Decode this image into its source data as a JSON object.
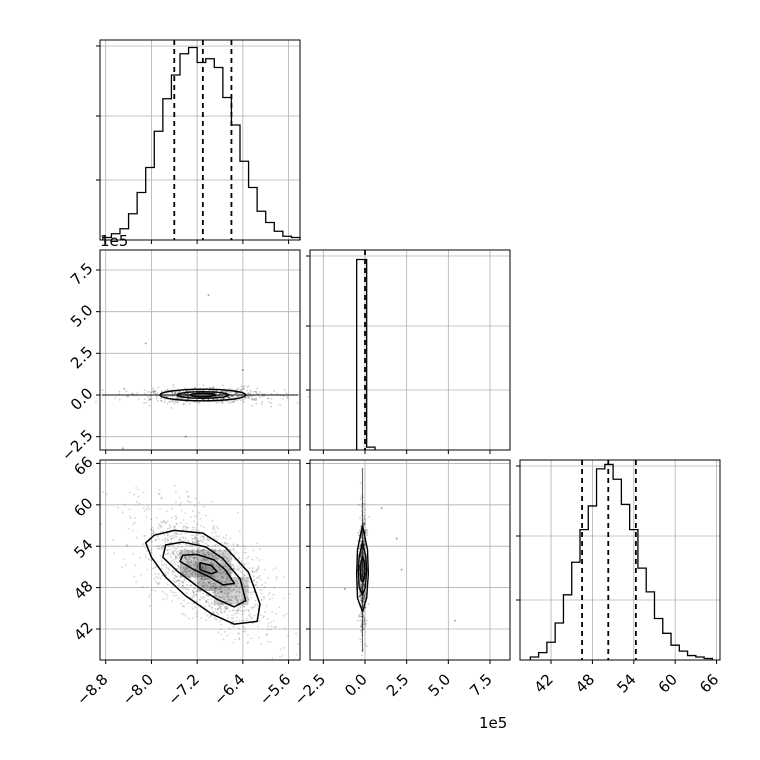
{
  "chart_data": {
    "type": "corner",
    "panels": {
      "hist_p1": {
        "type": "bar",
        "xlim": [
          -8.9,
          -5.4
        ],
        "bin_edges": [
          -8.85,
          -8.7,
          -8.55,
          -8.4,
          -8.25,
          -8.1,
          -7.95,
          -7.8,
          -7.65,
          -7.5,
          -7.35,
          -7.2,
          -7.05,
          -6.9,
          -6.75,
          -6.6,
          -6.45,
          -6.3,
          -6.15,
          -6.0,
          -5.85,
          -5.7,
          -5.55,
          -5.4
        ],
        "counts": [
          2,
          5,
          9,
          21,
          38,
          58,
          87,
          113,
          132,
          149,
          154,
          142,
          145,
          138,
          114,
          92,
          63,
          42,
          23,
          14,
          7,
          3,
          2
        ],
        "quantile_lines": [
          -7.6,
          -7.1,
          -6.6
        ],
        "yaxis_max": 160
      },
      "hist_p2": {
        "type": "bar",
        "xlim": [
          -3.3,
          8.7
        ],
        "bin_edges": [
          -0.5,
          0.1,
          0.6
        ],
        "counts": [
          100,
          1.5
        ],
        "quantile_lines": [
          0.0
        ],
        "yaxis_max": 105
      },
      "hist_p3": {
        "type": "bar",
        "xlim": [
          37.5,
          66.5
        ],
        "bin_edges": [
          39,
          40.2,
          41.4,
          42.6,
          43.8,
          45,
          46.2,
          47.4,
          48.6,
          49.8,
          51,
          52.2,
          53.4,
          54.6,
          55.8,
          57,
          58.2,
          59.4,
          60.6,
          61.8,
          63,
          64.2,
          65.4
        ],
        "counts": [
          2,
          5,
          12,
          25,
          44,
          66,
          88,
          104,
          129,
          132,
          122,
          105,
          88,
          62,
          46,
          28,
          18,
          10,
          6,
          3,
          2,
          1
        ],
        "quantile_lines": [
          46.5,
          50.3,
          54.3
        ],
        "yaxis_max": 135
      },
      "scatter_p1_p2": {
        "type": "scatter",
        "xlim": [
          -8.9,
          -5.4
        ],
        "ylim": [
          -3.3,
          8.7
        ],
        "center": [
          -7.1,
          0.0
        ],
        "contour_widths_x": [
          0.75,
          0.45,
          0.22
        ],
        "contour_heights_y": [
          0.35,
          0.2,
          0.1
        ],
        "outliers": [
          [
            -8.1,
            3.1
          ],
          [
            -7.0,
            6.0
          ],
          [
            -6.4,
            1.5
          ],
          [
            -7.4,
            -2.5
          ],
          [
            -8.5,
            -3.2
          ]
        ]
      },
      "scatter_p1_p3": {
        "type": "scatter",
        "xlim": [
          -8.9,
          -5.4
        ],
        "ylim": [
          37.5,
          66.5
        ],
        "center": [
          -7.05,
          50.5
        ],
        "contours": [
          [
            [
              -7.95,
              55.6
            ],
            [
              -7.6,
              56.3
            ],
            [
              -7.1,
              55.9
            ],
            [
              -6.7,
              53.8
            ],
            [
              -6.3,
              50.2
            ],
            [
              -6.1,
              45.6
            ],
            [
              -6.15,
              43.1
            ],
            [
              -6.55,
              42.7
            ],
            [
              -6.95,
              44.2
            ],
            [
              -7.4,
              46.8
            ],
            [
              -7.75,
              49.5
            ],
            [
              -8.0,
              52.4
            ],
            [
              -8.1,
              54.5
            ]
          ],
          [
            [
              -7.75,
              54.2
            ],
            [
              -7.45,
              54.6
            ],
            [
              -7.05,
              53.9
            ],
            [
              -6.75,
              52.2
            ],
            [
              -6.45,
              49.3
            ],
            [
              -6.35,
              46.1
            ],
            [
              -6.55,
              45.2
            ],
            [
              -6.85,
              46.3
            ],
            [
              -7.2,
              48.2
            ],
            [
              -7.55,
              50.4
            ],
            [
              -7.8,
              52.4
            ]
          ],
          [
            [
              -7.45,
              52.7
            ],
            [
              -7.2,
              52.8
            ],
            [
              -6.9,
              52.0
            ],
            [
              -6.7,
              50.5
            ],
            [
              -6.55,
              48.6
            ],
            [
              -6.75,
              48.4
            ],
            [
              -7.0,
              49.6
            ],
            [
              -7.3,
              50.8
            ],
            [
              -7.5,
              51.8
            ]
          ],
          [
            [
              -7.15,
              51.6
            ],
            [
              -6.95,
              51.2
            ],
            [
              -6.85,
              50.3
            ],
            [
              -6.95,
              50.0
            ],
            [
              -7.15,
              50.6
            ]
          ]
        ],
        "density_cells": [
          [
            -7.35,
            52.5,
            0.35
          ],
          [
            -7.05,
            52.5,
            0.5
          ],
          [
            -6.75,
            52.5,
            0.35
          ],
          [
            -7.35,
            50.5,
            0.5
          ],
          [
            -7.05,
            50.5,
            0.8
          ],
          [
            -6.75,
            50.5,
            0.55
          ],
          [
            -7.05,
            48.5,
            0.45
          ],
          [
            -6.75,
            48.5,
            0.5
          ],
          [
            -6.45,
            48.5,
            0.35
          ],
          [
            -6.75,
            46.5,
            0.35
          ],
          [
            -6.45,
            46.5,
            0.3
          ]
        ]
      },
      "scatter_p2_p3": {
        "type": "scatter",
        "xlim": [
          -3.3,
          8.7
        ],
        "ylim": [
          37.5,
          66.5
        ],
        "center": [
          -0.15,
          50.5
        ],
        "contours": [
          [
            [
              -0.15,
              57.0
            ],
            [
              0.15,
              53.5
            ],
            [
              0.2,
              50.0
            ],
            [
              0.1,
              46.5
            ],
            [
              -0.15,
              44.5
            ],
            [
              -0.45,
              46.5
            ],
            [
              -0.5,
              50.0
            ],
            [
              -0.45,
              53.5
            ]
          ],
          [
            [
              -0.15,
              54.5
            ],
            [
              0.05,
              52.5
            ],
            [
              0.1,
              50.5
            ],
            [
              0.02,
              48.0
            ],
            [
              -0.15,
              47.0
            ],
            [
              -0.35,
              48.0
            ],
            [
              -0.4,
              50.5
            ],
            [
              -0.35,
              52.5
            ]
          ],
          [
            [
              -0.15,
              52.5
            ],
            [
              -0.02,
              51.5
            ],
            [
              0.0,
              50.0
            ],
            [
              -0.1,
              48.8
            ],
            [
              -0.25,
              49.2
            ],
            [
              -0.3,
              51.0
            ]
          ]
        ],
        "outliers": [
          [
            1.9,
            55.1
          ],
          [
            5.4,
            43.2
          ],
          [
            2.2,
            50.6
          ],
          [
            -1.2,
            47.8
          ],
          [
            1.0,
            59.5
          ]
        ]
      }
    },
    "axes": {
      "p1": {
        "ticks": [
          -8.8,
          -8.0,
          -7.2,
          -6.4,
          -5.6
        ],
        "tick_labels": [
          "−8.8",
          "−8.0",
          "−7.2",
          "−6.4",
          "−5.6"
        ],
        "offset_label": "1e5"
      },
      "p2": {
        "ticks": [
          -2.5,
          0.0,
          2.5,
          5.0,
          7.5
        ],
        "tick_labels": [
          "−2.5",
          "0.0",
          "2.5",
          "5.0",
          "7.5"
        ],
        "offset_label": "1e5"
      },
      "p3": {
        "ticks": [
          42,
          48,
          54,
          60,
          66
        ],
        "tick_labels": [
          "42",
          "48",
          "54",
          "60",
          "66"
        ]
      }
    },
    "grid": true,
    "colors": {
      "line": "#000000",
      "grid": "#b0b0b0",
      "points": "#000000"
    }
  }
}
